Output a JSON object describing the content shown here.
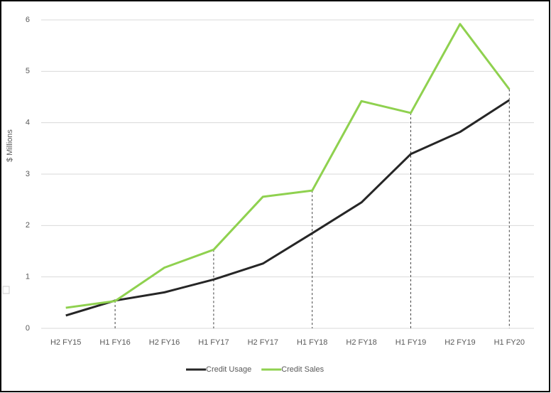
{
  "chart_data": {
    "type": "line",
    "y_label": "$ Millions",
    "categories": [
      "H2 FY15",
      "H1 FY16",
      "H2 FY16",
      "H1 FY17",
      "H2 FY17",
      "H1 FY18",
      "H2 FY18",
      "H1 FY19",
      "H2 FY19",
      "H1 FY20"
    ],
    "series": [
      {
        "name": "Credit Usage",
        "color": "#262626",
        "values": [
          0.25,
          0.54,
          0.7,
          0.95,
          1.26,
          1.85,
          2.45,
          3.39,
          3.82,
          4.44
        ]
      },
      {
        "name": "Credit Sales",
        "color": "#8fd14f",
        "values": [
          0.4,
          0.53,
          1.18,
          1.53,
          2.56,
          2.68,
          4.42,
          4.19,
          5.92,
          4.65
        ]
      }
    ],
    "ylim": [
      0,
      6
    ],
    "yticks": [
      0,
      1,
      2,
      3,
      4,
      5,
      6
    ],
    "grid": true,
    "legend": "bottom"
  }
}
